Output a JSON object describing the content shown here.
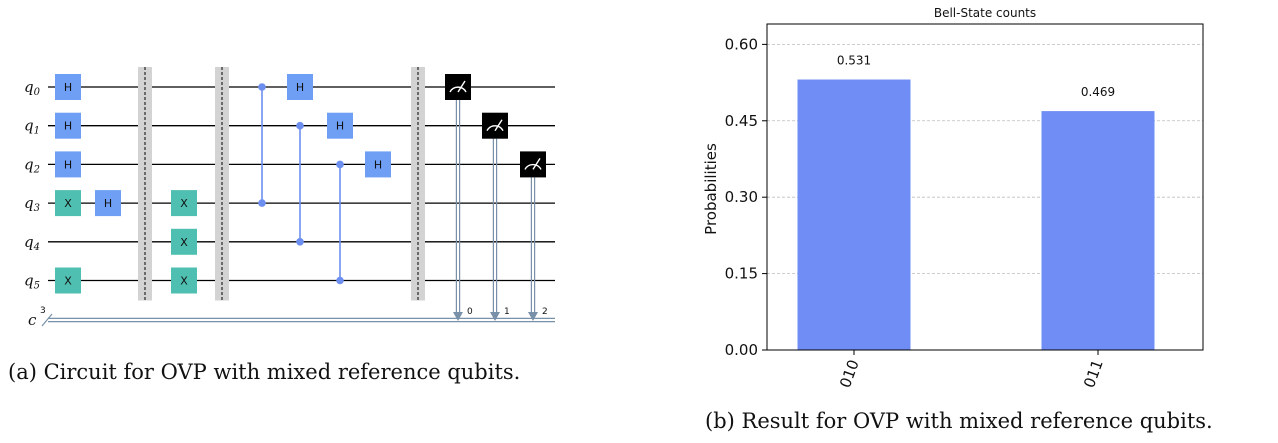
{
  "circuit": {
    "caption": "(a) Circuit for OVP with mixed reference qubits.",
    "qubits": [
      {
        "letter": "q",
        "index": "0"
      },
      {
        "letter": "q",
        "index": "1"
      },
      {
        "letter": "q",
        "index": "2"
      },
      {
        "letter": "q",
        "index": "3"
      },
      {
        "letter": "q",
        "index": "4"
      },
      {
        "letter": "q",
        "index": "5"
      }
    ],
    "classical_register": {
      "label": "c",
      "width": "3"
    },
    "gates": [
      {
        "type": "H",
        "label": "H",
        "qubit": 0,
        "column": 0
      },
      {
        "type": "H",
        "label": "H",
        "qubit": 1,
        "column": 0
      },
      {
        "type": "H",
        "label": "H",
        "qubit": 2,
        "column": 0
      },
      {
        "type": "X",
        "label": "X",
        "qubit": 3,
        "column": 0
      },
      {
        "type": "X",
        "label": "X",
        "qubit": 5,
        "column": 0
      },
      {
        "type": "H",
        "label": "H",
        "qubit": 3,
        "column": 1
      },
      {
        "type": "barrier",
        "column": 2
      },
      {
        "type": "X",
        "label": "X",
        "qubit": 3,
        "column": 3
      },
      {
        "type": "X",
        "label": "X",
        "qubit": 4,
        "column": 3
      },
      {
        "type": "X",
        "label": "X",
        "qubit": 5,
        "column": 3
      },
      {
        "type": "barrier",
        "column": 4
      },
      {
        "type": "CZ",
        "qubits": [
          0,
          3
        ],
        "column": 5
      },
      {
        "type": "H",
        "label": "H",
        "qubit": 0,
        "column": 6
      },
      {
        "type": "CZ",
        "qubits": [
          1,
          4
        ],
        "column": 6
      },
      {
        "type": "H",
        "label": "H",
        "qubit": 1,
        "column": 7
      },
      {
        "type": "CZ",
        "qubits": [
          2,
          5
        ],
        "column": 7
      },
      {
        "type": "H",
        "label": "H",
        "qubit": 2,
        "column": 8
      },
      {
        "type": "barrier",
        "column": 9
      },
      {
        "type": "measure",
        "qubit": 0,
        "clbit": "0",
        "column": 10
      },
      {
        "type": "measure",
        "qubit": 1,
        "clbit": "1",
        "column": 11
      },
      {
        "type": "measure",
        "qubit": 2,
        "clbit": "2",
        "column": 12
      }
    ],
    "colors": {
      "h_gate": "#6f9ff5",
      "x_gate": "#4fbfb1",
      "control_wire": "#6d8ff0",
      "barrier": "#d3d3d3",
      "measure": "#000000",
      "classical_wire": "#7890a8"
    }
  },
  "chart_data": {
    "type": "bar",
    "title": "Bell-State counts",
    "categories": [
      "010",
      "011"
    ],
    "values": [
      0.531,
      0.469
    ],
    "value_labels": [
      "0.531",
      "0.469"
    ],
    "xlabel": "",
    "ylabel": "Probabilities",
    "ylim": [
      0,
      0.64
    ],
    "yticks": [
      0.0,
      0.15,
      0.3,
      0.45,
      0.6
    ],
    "ytick_labels": [
      "0.00",
      "0.15",
      "0.30",
      "0.45",
      "0.60"
    ],
    "grid": "horizontal dashed",
    "bar_color": "#6f8df4",
    "caption": "(b) Result for OVP with mixed reference qubits."
  }
}
